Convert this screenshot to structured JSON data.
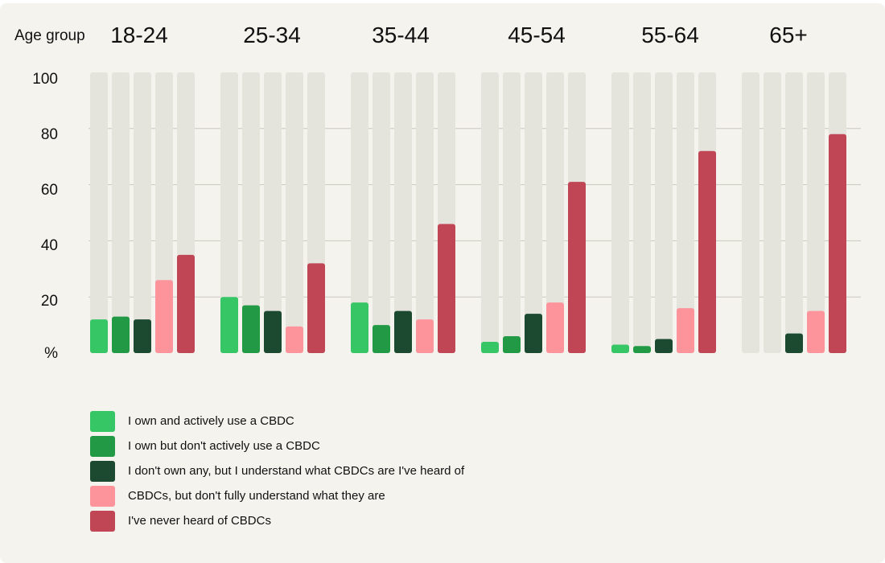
{
  "colors": {
    "background": "#f4f3ed",
    "track": "#e4e3dc",
    "gridline": "#c9c8bf",
    "series": [
      "#36c665",
      "#229a45",
      "#1b4a30",
      "#fd949b",
      "#c04655"
    ]
  },
  "chart_data": {
    "type": "bar",
    "axis_title": "Age group",
    "y_unit_label": "%",
    "ylim": [
      0,
      100
    ],
    "y_ticks": [
      "100",
      "80",
      "60",
      "40",
      "20"
    ],
    "categories": [
      "18-24",
      "25-34",
      "35-44",
      "45-54",
      "55-64",
      "65+"
    ],
    "series": [
      {
        "name": "I own and actively use a CBDC",
        "values": [
          12,
          20,
          18,
          4,
          3,
          0
        ]
      },
      {
        "name": "I own but don't actively use a CBDC",
        "values": [
          13,
          17,
          10,
          6,
          2.5,
          0
        ]
      },
      {
        "name": "I don't own any, but I understand what CBDCs are I've heard of",
        "values": [
          12,
          15,
          15,
          14,
          5,
          7
        ]
      },
      {
        "name": "CBDCs, but don't fully understand what they are",
        "values": [
          26,
          9.5,
          12,
          18,
          16,
          15
        ]
      },
      {
        "name": "I've never heard of CBDCs",
        "values": [
          35,
          32,
          46,
          61,
          72,
          78
        ]
      }
    ]
  }
}
